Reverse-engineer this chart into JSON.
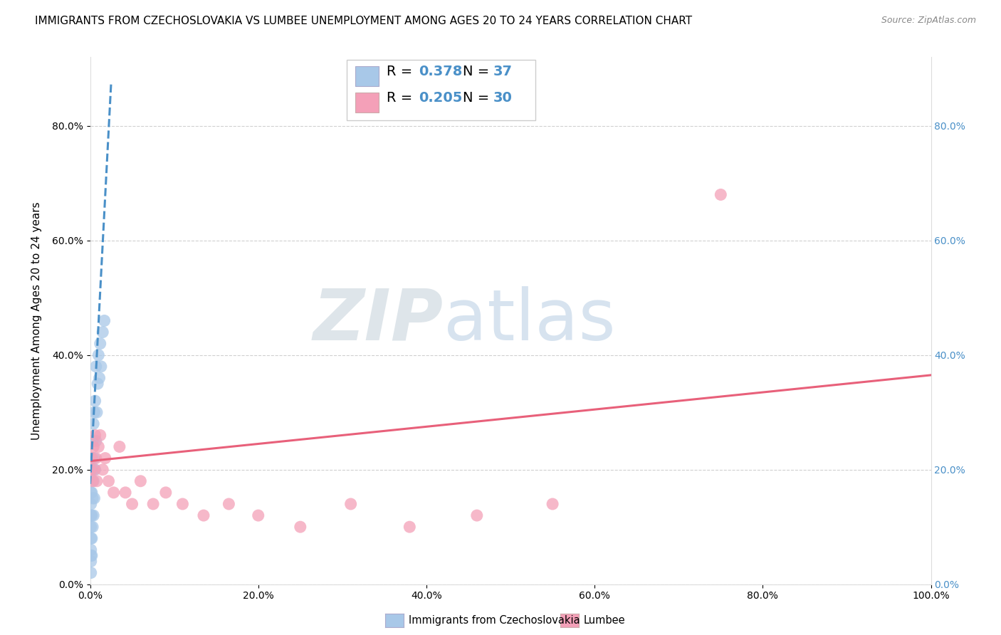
{
  "title": "IMMIGRANTS FROM CZECHOSLOVAKIA VS LUMBEE UNEMPLOYMENT AMONG AGES 20 TO 24 YEARS CORRELATION CHART",
  "source": "Source: ZipAtlas.com",
  "ylabel": "Unemployment Among Ages 20 to 24 years",
  "xlim": [
    0.0,
    1.0
  ],
  "ylim": [
    0.0,
    0.92
  ],
  "yticks": [
    0.0,
    0.2,
    0.4,
    0.6,
    0.8
  ],
  "ytick_labels": [
    "0.0%",
    "20.0%",
    "40.0%",
    "60.0%",
    "80.0%"
  ],
  "xticks": [
    0.0,
    0.2,
    0.4,
    0.6,
    0.8,
    1.0
  ],
  "xtick_labels": [
    "0.0%",
    "20.0%",
    "40.0%",
    "60.0%",
    "80.0%",
    "100.0%"
  ],
  "blue_color": "#a8c8e8",
  "pink_color": "#f4a0b8",
  "blue_line_color": "#4a90c8",
  "pink_line_color": "#e8607a",
  "watermark_ZIP": "ZIP",
  "watermark_atlas": "atlas",
  "watermark_ZIP_color": "#d0d8e0",
  "watermark_atlas_color": "#b8d0e8",
  "legend_label1": "Immigrants from Czechoslovakia",
  "legend_label2": "Lumbee",
  "blue_x": [
    0.001,
    0.001,
    0.001,
    0.001,
    0.001,
    0.001,
    0.001,
    0.001,
    0.001,
    0.002,
    0.002,
    0.002,
    0.002,
    0.002,
    0.002,
    0.003,
    0.003,
    0.003,
    0.003,
    0.004,
    0.004,
    0.004,
    0.005,
    0.005,
    0.005,
    0.006,
    0.006,
    0.007,
    0.007,
    0.008,
    0.009,
    0.01,
    0.011,
    0.012,
    0.013,
    0.015,
    0.017
  ],
  "blue_y": [
    0.02,
    0.04,
    0.05,
    0.06,
    0.08,
    0.1,
    0.12,
    0.14,
    0.16,
    0.05,
    0.08,
    0.12,
    0.16,
    0.2,
    0.22,
    0.1,
    0.15,
    0.2,
    0.25,
    0.12,
    0.18,
    0.28,
    0.15,
    0.22,
    0.3,
    0.2,
    0.32,
    0.25,
    0.38,
    0.3,
    0.35,
    0.4,
    0.36,
    0.42,
    0.38,
    0.44,
    0.46
  ],
  "pink_x": [
    0.001,
    0.002,
    0.003,
    0.004,
    0.005,
    0.006,
    0.007,
    0.008,
    0.01,
    0.012,
    0.015,
    0.018,
    0.022,
    0.028,
    0.035,
    0.042,
    0.05,
    0.06,
    0.075,
    0.09,
    0.11,
    0.135,
    0.165,
    0.2,
    0.25,
    0.31,
    0.38,
    0.46,
    0.55,
    0.75
  ],
  "pink_y": [
    0.2,
    0.22,
    0.18,
    0.24,
    0.2,
    0.26,
    0.22,
    0.18,
    0.24,
    0.26,
    0.2,
    0.22,
    0.18,
    0.16,
    0.24,
    0.16,
    0.14,
    0.18,
    0.14,
    0.16,
    0.14,
    0.12,
    0.14,
    0.12,
    0.1,
    0.14,
    0.1,
    0.12,
    0.14,
    0.68
  ],
  "pink_line_start_y": 0.215,
  "pink_line_end_y": 0.365,
  "blue_line_slope": 28.0,
  "blue_line_intercept": 0.175,
  "background_color": "#ffffff",
  "grid_color": "#d0d0d0",
  "title_fontsize": 11,
  "axis_label_fontsize": 11,
  "tick_fontsize": 10,
  "legend_fontsize": 14
}
